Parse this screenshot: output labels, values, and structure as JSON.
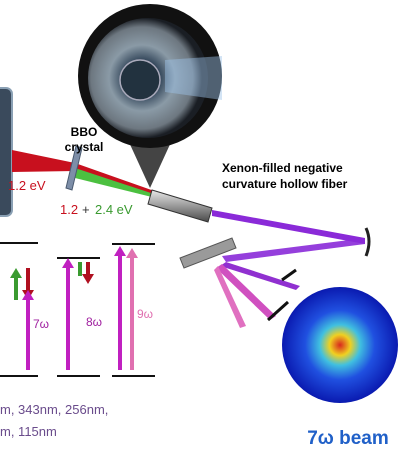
{
  "labels": {
    "crystal": [
      "BBO",
      "crystal"
    ],
    "fiber": [
      "Xenon-filled negative",
      "curvature hollow fiber"
    ],
    "fundamental": "1.2 eV",
    "mixed": {
      "red": "1.2",
      "plus": "+",
      "green": "2.4 eV"
    },
    "harmonics": [
      "7ω",
      "8ω",
      "9ω"
    ],
    "wavelengths": [
      "m, 343nm, 256nm,",
      "m, 115nm"
    ],
    "beam": "7ω beam"
  }
}
